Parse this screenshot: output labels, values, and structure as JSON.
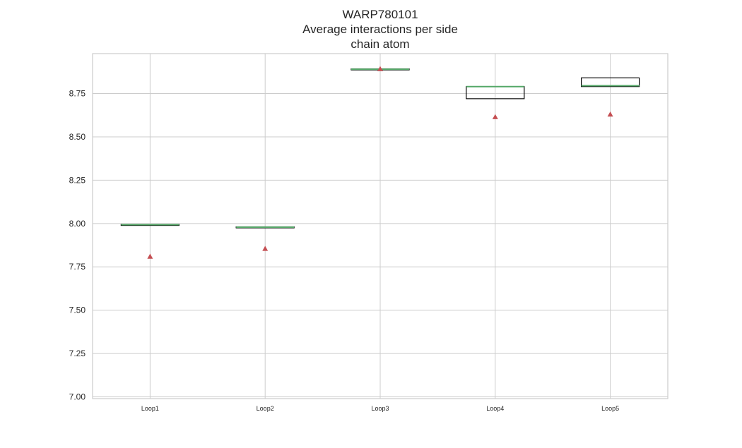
{
  "chart_data": {
    "type": "box",
    "title_lines": [
      "WARP780101",
      "Average interactions per side",
      "chain atom"
    ],
    "xlabel": "",
    "ylabel": "",
    "categories": [
      "Loop1",
      "Loop2",
      "Loop3",
      "Loop4",
      "Loop5"
    ],
    "ylim": [
      6.99,
      8.98
    ],
    "yticks": [
      7.0,
      7.25,
      7.5,
      7.75,
      8.0,
      8.25,
      8.5,
      8.75
    ],
    "ytick_labels": [
      "7.00",
      "7.25",
      "7.50",
      "7.75",
      "8.00",
      "8.25",
      "8.50",
      "8.75"
    ],
    "grid": true,
    "boxes": [
      {
        "category": "Loop1",
        "q1": 7.99,
        "median": 7.993,
        "q3": 7.995,
        "mean": 7.81
      },
      {
        "category": "Loop2",
        "q1": 7.977,
        "median": 7.979,
        "q3": 7.981,
        "mean": 7.855
      },
      {
        "category": "Loop3",
        "q1": 8.888,
        "median": 8.89,
        "q3": 8.892,
        "mean": 8.892
      },
      {
        "category": "Loop4",
        "q1": 8.72,
        "median": 8.79,
        "q3": 8.79,
        "mean": 8.615
      },
      {
        "category": "Loop5",
        "q1": 8.79,
        "median": 8.795,
        "q3": 8.84,
        "mean": 8.63
      }
    ],
    "colors": {
      "median": "#55a868",
      "mean_marker": "#c44e52",
      "box_edge": "#000000",
      "grid": "#cccccc",
      "frame": "#cccccc"
    }
  }
}
